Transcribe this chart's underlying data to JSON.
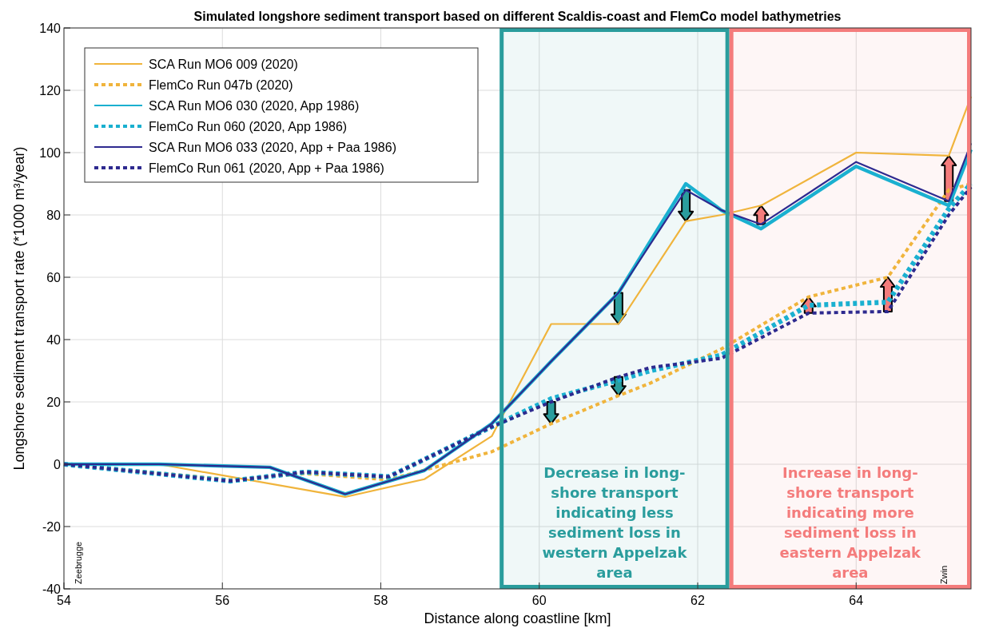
{
  "chart_data": {
    "type": "line",
    "title": "Simulated longshore sediment transport based on different Scaldis-coast and FlemCo model bathymetries",
    "xlabel": "Distance along coastline [km]",
    "ylabel": "Longshore sediment transport rate (*1000 m³/year)",
    "xlim": [
      54,
      65.45
    ],
    "xticks": [
      54,
      56,
      58,
      60,
      62,
      64
    ],
    "ylim": [
      -40,
      140
    ],
    "yticks": [
      -40,
      -20,
      0,
      20,
      40,
      60,
      80,
      100,
      120,
      140
    ],
    "grid": true,
    "legend": "top left",
    "marker": "none",
    "series": [
      {
        "name": "SCA Run MO6 009 (2020)",
        "color": "#f0b43c",
        "line_style": "solid",
        "x": [
          54,
          55.2,
          57.55,
          58.55,
          59.4,
          60.15,
          61,
          61.85,
          62.3,
          62.8,
          64,
          65.17,
          65.45
        ],
        "values": [
          0,
          0,
          -10.5,
          -4.8,
          9,
          45,
          45,
          78,
          80,
          83,
          100,
          99,
          118
        ]
      },
      {
        "name": "FlemCo Run 047b (2020)",
        "color": "#f0b43c",
        "line_style": "dotted",
        "x": [
          54,
          56.1,
          57.05,
          58.1,
          59.4,
          60.15,
          61,
          61.4,
          62.3,
          63.4,
          64.4,
          65.17,
          65.45
        ],
        "values": [
          0,
          -5,
          -3,
          -5,
          4,
          13,
          22,
          26,
          37,
          53.7,
          60,
          88,
          90
        ]
      },
      {
        "name": "SCA Run MO6 030 (2020, App 1986)",
        "color": "#1ab0d0",
        "line_style": "solid",
        "x": [
          54,
          55.2,
          56.6,
          57.55,
          58.55,
          59.4,
          60.15,
          61,
          61.85,
          62.3,
          62.8,
          64,
          65.17,
          65.45
        ],
        "values": [
          0,
          0,
          -1,
          -9.6,
          -2,
          13,
          33,
          55,
          90,
          81.5,
          75.6,
          95.6,
          83,
          101
        ]
      },
      {
        "name": "FlemCo Run 060 (2020, App 1986)",
        "color": "#1ab0d0",
        "line_style": "dotted",
        "x": [
          54,
          56.1,
          57.05,
          58.1,
          59.4,
          60.15,
          61,
          61.4,
          62.3,
          63.4,
          64.4,
          65.17,
          65.45
        ],
        "values": [
          0,
          -5.4,
          -2.5,
          -4,
          12,
          21,
          27,
          30,
          35,
          51,
          52,
          82,
          90
        ]
      },
      {
        "name": "SCA Run MO6 033 (2020, App + Paa 1986)",
        "color": "#2e2a8f",
        "line_style": "solid",
        "x": [
          54,
          55.2,
          56.6,
          57.55,
          58.55,
          59.4,
          60.15,
          61,
          61.85,
          62.3,
          62.8,
          64,
          65.17,
          65.45
        ],
        "values": [
          0,
          0,
          -1,
          -9.6,
          -2,
          13,
          33,
          55,
          88,
          81.5,
          77,
          97,
          84.4,
          103
        ]
      },
      {
        "name": "FlemCo Run 061 (2020, App + Paa 1986)",
        "color": "#2e2a8f",
        "line_style": "dotted",
        "x": [
          54,
          56.1,
          57.05,
          58.1,
          59.4,
          60.15,
          61,
          61.4,
          62.3,
          63.4,
          64.4,
          65.17,
          65.45
        ],
        "values": [
          0,
          -5.4,
          -2.5,
          -4,
          12,
          20,
          28,
          31,
          34,
          48.5,
          49,
          80,
          89
        ]
      }
    ],
    "bands": [
      {
        "axis": "x",
        "from": 59.5,
        "to": 62.4,
        "color": "#2a9d9d",
        "label": "Decrease in long-\nshore transport\nindicating less\nsediment loss in\nwestern Appelzak\narea"
      },
      {
        "axis": "x",
        "from": 62.4,
        "to": 65.45,
        "color": "#f47c7c",
        "label": "Increase in long-\nshore transport\nindicating more\nsediment loss in\neastern Appelzak\narea"
      }
    ],
    "annotations": [
      "Zeebrugge",
      "Zwin"
    ]
  }
}
